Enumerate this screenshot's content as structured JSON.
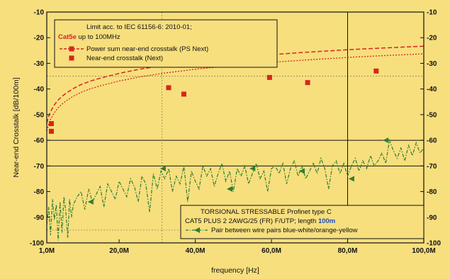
{
  "chart_data": {
    "type": "line",
    "title": "",
    "xlabel": "frequency [Hz]",
    "ylabel": "Near-end Crosstalk [dB/100m]",
    "xlim": [
      1,
      100
    ],
    "ylim": [
      -100,
      -10
    ],
    "x_tick_values": [
      1,
      20,
      40,
      60,
      80,
      100
    ],
    "x_tick_labels": [
      "1,0M",
      "20,0M",
      "40,0M",
      "60,0M",
      "80,0M",
      "100,0M"
    ],
    "y_tick_values": [
      -10,
      -20,
      -30,
      -40,
      -50,
      -60,
      -70,
      -80,
      -90,
      -100
    ],
    "y_tick_labels": [
      "-10",
      "-20",
      "-30",
      "-40",
      "-50",
      "-60",
      "-70",
      "-80",
      "-90",
      "-100"
    ],
    "grid": false,
    "reference_lines": {
      "horizontal": [
        -35,
        -60,
        -70
      ],
      "vertical": [
        31.25,
        80
      ]
    },
    "legend_top": {
      "placement": "top-left",
      "line1": "Limit acc. to IEC 61156-6: 2010-01;",
      "line2_highlight": "Cat5e",
      "line2_rest": " up to 100MHz",
      "entry_psnext": "Power sum near-end crosstalk (PS Next)",
      "entry_next": "Near-end crosstalk (Next)"
    },
    "legend_bottom": {
      "placement": "bottom-right",
      "line1": "TORSIONAL STRESSABLE Profinet type C",
      "line2_prefix": "CAT5 PLUS 2 2AWG/25 (FR) F/UTP; length ",
      "line2_highlight": "100m",
      "entry_measured": "Pair between wire pairs blue-white/orange-yellow"
    },
    "series": [
      {
        "name": "Power sum near-end crosstalk (PS Next)",
        "color": "#d7261e",
        "style": "dashed",
        "x": [
          1,
          1.5,
          2,
          3,
          4,
          5,
          6,
          8,
          10,
          12.5,
          15,
          20,
          25,
          31.25,
          40,
          50,
          60,
          70,
          80,
          88,
          100
        ],
        "y": [
          -53.3,
          -50.7,
          -48.8,
          -46.2,
          -44.3,
          -42.9,
          -41.7,
          -39.8,
          -38.3,
          -36.9,
          -35.8,
          -33.9,
          -32.4,
          -30.9,
          -29.3,
          -27.8,
          -26.6,
          -25.6,
          -24.7,
          -24.1,
          -23.3
        ]
      },
      {
        "name": "Near-end crosstalk (Next)",
        "color": "#d7261e",
        "style": "dotted",
        "x": [
          1,
          1.5,
          2,
          3,
          4,
          5,
          6,
          8,
          10,
          12.5,
          15,
          20,
          25,
          31.25,
          40,
          50,
          60,
          70,
          80,
          88,
          100
        ],
        "y": [
          -56.3,
          -53.7,
          -51.8,
          -49.2,
          -47.3,
          -45.9,
          -44.7,
          -42.8,
          -41.3,
          -39.9,
          -38.8,
          -36.9,
          -35.4,
          -33.9,
          -32.3,
          -30.8,
          -29.6,
          -28.6,
          -27.7,
          -27.1,
          -26.3
        ]
      },
      {
        "name": "PS Next markers",
        "color": "#d7261e",
        "x": [
          2.2,
          33,
          59.5,
          87.5
        ],
        "y": [
          -53.5,
          -39.5,
          -35.5,
          -33
        ]
      },
      {
        "name": "Next markers",
        "color": "#d7261e",
        "x": [
          2.2,
          37,
          69.5
        ],
        "y": [
          -56.5,
          -42,
          -37.5
        ]
      },
      {
        "name": "Pair between wire pairs blue-white/orange-yellow",
        "color": "#2f7d32",
        "style": "dash-dot",
        "x": [
          1,
          1.5,
          2,
          2.5,
          3,
          3.5,
          4,
          4.5,
          5,
          5.5,
          6,
          6.5,
          7,
          7.5,
          8,
          9,
          10,
          11,
          12,
          13,
          14,
          15,
          16,
          17,
          18,
          19,
          20,
          21,
          22,
          23,
          24,
          25,
          26,
          27,
          28,
          29,
          30,
          31,
          32,
          33,
          34,
          35,
          36,
          37,
          38,
          39,
          40,
          41,
          42,
          43,
          44,
          45,
          46,
          47,
          48,
          49,
          50,
          51,
          52,
          53,
          54,
          55,
          56,
          57,
          58,
          59,
          60,
          61,
          62,
          63,
          64,
          65,
          66,
          67,
          68,
          69,
          70,
          71,
          72,
          73,
          74,
          75,
          76,
          77,
          78,
          79,
          80,
          81,
          82,
          83,
          84,
          85,
          86,
          87,
          88,
          89,
          90,
          91,
          92,
          93,
          94,
          95,
          96,
          97,
          98,
          99,
          100
        ],
        "y": [
          -93,
          -86,
          -97,
          -83,
          -91,
          -85,
          -99,
          -84,
          -96,
          -82,
          -88,
          -98,
          -83,
          -90,
          -85,
          -82,
          -80,
          -87,
          -79,
          -84,
          -81,
          -78,
          -86,
          -77,
          -80,
          -83,
          -76,
          -79,
          -82,
          -75,
          -78,
          -84,
          -74,
          -77,
          -88,
          -73,
          -79,
          -72,
          -75,
          -71,
          -80,
          -74,
          -77,
          -70,
          -84,
          -72,
          -76,
          -79,
          -70,
          -74,
          -71,
          -78,
          -73,
          -69,
          -76,
          -72,
          -80,
          -71,
          -74,
          -70,
          -77,
          -73,
          -69,
          -75,
          -72,
          -80,
          -71,
          -70,
          -73,
          -69,
          -77,
          -71,
          -68,
          -74,
          -70,
          -75,
          -72,
          -69,
          -73,
          -67,
          -71,
          -79,
          -70,
          -68,
          -73,
          -69,
          -74,
          -70,
          -67,
          -72,
          -68,
          -71,
          -66,
          -70,
          -68,
          -65,
          -69,
          -60,
          -64,
          -67,
          -63,
          -68,
          -62,
          -66,
          -61,
          -65,
          -63
        ]
      },
      {
        "name": "Measured markers",
        "color": "#2f7d32",
        "x": [
          12.5,
          31.5,
          49,
          55,
          68,
          81,
          90
        ],
        "y": [
          -84,
          -71,
          -79,
          -71,
          -72,
          -75,
          -60
        ]
      }
    ]
  }
}
